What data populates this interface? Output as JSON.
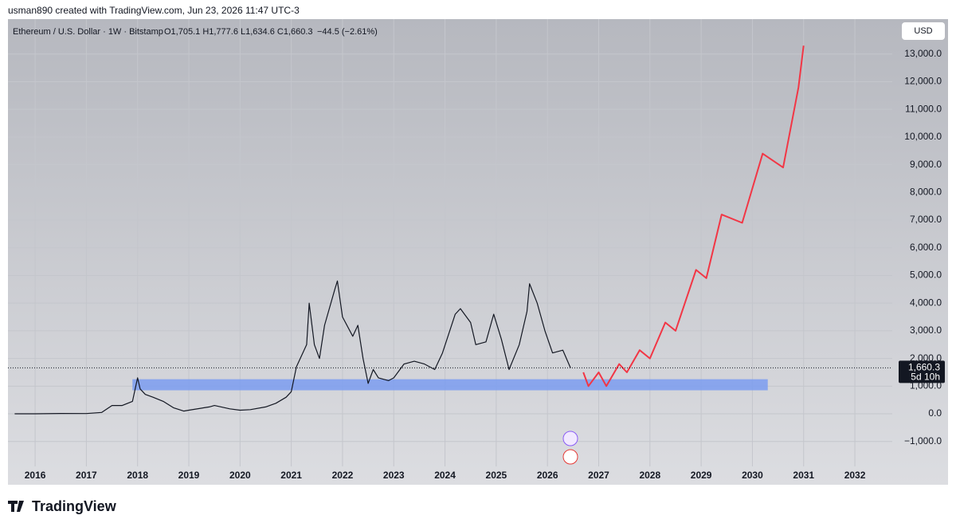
{
  "header": {
    "author": "usman890 created with TradingView.com, Jun 23, 2026 11:47 UTC-3"
  },
  "footer": {
    "brand": "TradingView"
  },
  "chart_data": {
    "type": "line",
    "symbol": "Ethereum / U.S. Dollar · 1W · Bitstamp",
    "ohlc": "O1,705.1  H1,777.6  L1,634.6  C1,660.3",
    "change": "−44.5 (−2.61%)",
    "currency": "USD",
    "xlim": [
      2015.47,
      2032.73
    ],
    "ylim": [
      -1900,
      14260
    ],
    "xticks": [
      2016,
      2017,
      2018,
      2019,
      2020,
      2021,
      2022,
      2023,
      2024,
      2025,
      2026,
      2027,
      2028,
      2029,
      2030,
      2031,
      2032
    ],
    "yticks": [
      {
        "value": -1000,
        "label": "−1,000.0"
      },
      {
        "value": 0,
        "label": "0.0"
      },
      {
        "value": 1000,
        "label": "1,000.0"
      },
      {
        "value": 2000,
        "label": "2,000.0"
      },
      {
        "value": 3000,
        "label": "3,000.0"
      },
      {
        "value": 4000,
        "label": "4,000.0"
      },
      {
        "value": 5000,
        "label": "5,000.0"
      },
      {
        "value": 6000,
        "label": "6,000.0"
      },
      {
        "value": 7000,
        "label": "7,000.0"
      },
      {
        "value": 8000,
        "label": "8,000.0"
      },
      {
        "value": 9000,
        "label": "9,000.0"
      },
      {
        "value": 10000,
        "label": "10,000.0"
      },
      {
        "value": 11000,
        "label": "11,000.0"
      },
      {
        "value": 12000,
        "label": "12,000.0"
      },
      {
        "value": 13000,
        "label": "13,000.0"
      }
    ],
    "grid": true,
    "last_price": {
      "value": 1660.3,
      "label": "1,660.3"
    },
    "countdown": "5d 10h",
    "zone": {
      "x": [
        2017.9,
        2030.3
      ],
      "y": [
        850,
        1250
      ],
      "color": "#7b9cf0"
    },
    "series": [
      {
        "color": "#131722",
        "x": [
          2015.6,
          2016.0,
          2016.5,
          2017.0,
          2017.3,
          2017.5,
          2017.7,
          2017.9,
          2018.0,
          2018.05,
          2018.15,
          2018.3,
          2018.5,
          2018.7,
          2018.9,
          2019.0,
          2019.4,
          2019.5,
          2019.8,
          2020.0,
          2020.2,
          2020.5,
          2020.7,
          2020.9,
          2021.0,
          2021.1,
          2021.3,
          2021.35,
          2021.45,
          2021.55,
          2021.65,
          2021.85,
          2021.9,
          2022.0,
          2022.2,
          2022.3,
          2022.4,
          2022.5,
          2022.6,
          2022.7,
          2022.9,
          2023.0,
          2023.2,
          2023.4,
          2023.6,
          2023.8,
          2023.95,
          2024.2,
          2024.3,
          2024.5,
          2024.6,
          2024.8,
          2024.95,
          2025.1,
          2025.25,
          2025.45,
          2025.6,
          2025.65,
          2025.8,
          2025.95,
          2026.1,
          2026.3,
          2026.45
        ],
        "values": [
          1,
          1,
          12,
          10,
          50,
          300,
          300,
          450,
          1300,
          900,
          700,
          600,
          450,
          220,
          100,
          130,
          250,
          300,
          180,
          130,
          150,
          250,
          380,
          600,
          800,
          1700,
          2500,
          4000,
          2500,
          2000,
          3200,
          4500,
          4800,
          3500,
          2800,
          3200,
          2000,
          1100,
          1600,
          1300,
          1200,
          1300,
          1800,
          1900,
          1800,
          1600,
          2200,
          3600,
          3800,
          3300,
          2500,
          2600,
          3600,
          2700,
          1600,
          2500,
          3700,
          4700,
          4000,
          3000,
          2200,
          2300,
          1660.3
        ]
      },
      {
        "color": "#f23645",
        "x": [
          2026.7,
          2026.8,
          2027.0,
          2027.15,
          2027.4,
          2027.55,
          2027.8,
          2028.0,
          2028.3,
          2028.5,
          2028.9,
          2029.1,
          2029.4,
          2029.8,
          2030.2,
          2030.6,
          2030.9,
          2031.0
        ],
        "values": [
          1500,
          1000,
          1500,
          1000,
          1800,
          1500,
          2300,
          2000,
          3300,
          3000,
          5200,
          4900,
          7200,
          6900,
          9400,
          8900,
          11800,
          13300
        ]
      }
    ]
  }
}
